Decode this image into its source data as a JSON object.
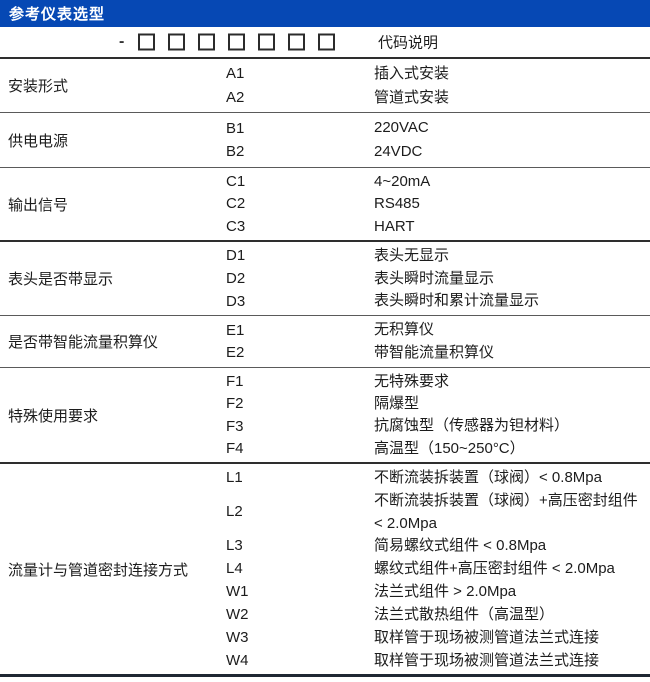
{
  "header": {
    "title": "参考仪表选型"
  },
  "model_row": {
    "dash": "-",
    "box_count": 7,
    "label": "代码说明"
  },
  "colors": {
    "header_bg": "#0648b4",
    "header_text": "#ffffff",
    "divider": "#5a5a5a",
    "divider_strong": "#2e2e2e",
    "bottom_bar": "#1f2733",
    "text": "#1c1c1c"
  },
  "sections": [
    {
      "label": "安装形式",
      "items": [
        {
          "code": "A1",
          "desc": "插入式安装"
        },
        {
          "code": "A2",
          "desc": "管道式安装"
        }
      ]
    },
    {
      "label": "供电电源",
      "items": [
        {
          "code": "B1",
          "desc": "220VAC"
        },
        {
          "code": "B2",
          "desc": "24VDC"
        }
      ]
    },
    {
      "label": "输出信号",
      "items": [
        {
          "code": "C1",
          "desc": "4~20mA"
        },
        {
          "code": "C2",
          "desc": "RS485"
        },
        {
          "code": "C3",
          "desc": "HART"
        }
      ]
    },
    {
      "label": "表头是否带显示",
      "items": [
        {
          "code": "D1",
          "desc": "表头无显示"
        },
        {
          "code": "D2",
          "desc": "表头瞬时流量显示"
        },
        {
          "code": "D3",
          "desc": "表头瞬时和累计流量显示"
        }
      ]
    },
    {
      "label": "是否带智能流量积算仪",
      "items": [
        {
          "code": "E1",
          "desc": "无积算仪"
        },
        {
          "code": "E2",
          "desc": "带智能流量积算仪"
        }
      ]
    },
    {
      "label": "特殊使用要求",
      "items": [
        {
          "code": "F1",
          "desc": "无特殊要求"
        },
        {
          "code": "F2",
          "desc": "隔爆型"
        },
        {
          "code": "F3",
          "desc": "抗腐蚀型（传感器为钽材料）"
        },
        {
          "code": "F4",
          "desc": "高温型（150~250°C）"
        }
      ]
    },
    {
      "label": "流量计与管道密封连接方式",
      "items": [
        {
          "code": "L1",
          "desc": "不断流装拆装置（球阀）< 0.8Mpa"
        },
        {
          "code": "L2",
          "desc": "不断流装拆装置（球阀）+高压密封组件 < 2.0Mpa"
        },
        {
          "code": "L3",
          "desc": "简易螺纹式组件 < 0.8Mpa"
        },
        {
          "code": "L4",
          "desc": "螺纹式组件+高压密封组件 < 2.0Mpa"
        },
        {
          "code": "W1",
          "desc": "法兰式组件 > 2.0Mpa"
        },
        {
          "code": "W2",
          "desc": "法兰式散热组件（高温型）"
        },
        {
          "code": "W3",
          "desc": "取样管于现场被测管道法兰式连接"
        },
        {
          "code": "W4",
          "desc": "取样管于现场被测管道法兰式连接"
        }
      ]
    }
  ]
}
